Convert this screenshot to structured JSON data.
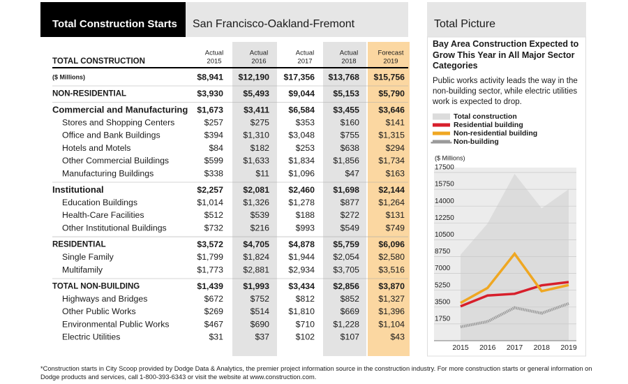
{
  "header": {
    "title": "Total Construction Starts",
    "region": "San Francisco-Oakland-Fremont"
  },
  "table": {
    "heading": "TOTAL CONSTRUCTION",
    "columns": [
      {
        "status": "Actual",
        "year": "2015"
      },
      {
        "status": "Actual",
        "year": "2016"
      },
      {
        "status": "Actual",
        "year": "2017"
      },
      {
        "status": "Actual",
        "year": "2018"
      },
      {
        "status": "Forecast",
        "year": "2019"
      }
    ],
    "rows": [
      {
        "label": "($ Millions)",
        "style": "units",
        "values": [
          "$8,941",
          "$12,190",
          "$17,356",
          "$13,768",
          "$15,756"
        ]
      },
      {
        "label": "NON-RESIDENTIAL",
        "style": "section",
        "values": [
          "$3,930",
          "$5,493",
          "$9,044",
          "$5,153",
          "$5,790"
        ]
      },
      {
        "label": "Commercial and Manufacturing",
        "style": "group",
        "values": [
          "$1,673",
          "$3,411",
          "$6,584",
          "$3,455",
          "$3,646"
        ]
      },
      {
        "label": "Stores and Shopping Centers",
        "style": "item",
        "values": [
          "$257",
          "$275",
          "$353",
          "$160",
          "$141"
        ]
      },
      {
        "label": "Office and Bank Buildings",
        "style": "item",
        "values": [
          "$394",
          "$1,310",
          "$3,048",
          "$755",
          "$1,315"
        ]
      },
      {
        "label": "Hotels and Motels",
        "style": "item",
        "values": [
          "$84",
          "$182",
          "$253",
          "$638",
          "$294"
        ]
      },
      {
        "label": "Other Commercial Buildings",
        "style": "item",
        "values": [
          "$599",
          "$1,633",
          "$1,834",
          "$1,856",
          "$1,734"
        ]
      },
      {
        "label": "Manufacturing Buildings",
        "style": "item",
        "values": [
          "$338",
          "$11",
          "$1,096",
          "$47",
          "$163"
        ]
      },
      {
        "label": "Institutional",
        "style": "group",
        "values": [
          "$2,257",
          "$2,081",
          "$2,460",
          "$1,698",
          "$2,144"
        ]
      },
      {
        "label": "Education Buildings",
        "style": "item",
        "values": [
          "$1,014",
          "$1,326",
          "$1,278",
          "$877",
          "$1,264"
        ]
      },
      {
        "label": "Health-Care Facilities",
        "style": "item",
        "values": [
          "$512",
          "$539",
          "$188",
          "$272",
          "$131"
        ]
      },
      {
        "label": "Other Institutional Buildings",
        "style": "item",
        "values": [
          "$732",
          "$216",
          "$993",
          "$549",
          "$749"
        ]
      },
      {
        "label": "RESIDENTIAL",
        "style": "section",
        "values": [
          "$3,572",
          "$4,705",
          "$4,878",
          "$5,759",
          "$6,096"
        ]
      },
      {
        "label": "Single Family",
        "style": "item",
        "values": [
          "$1,799",
          "$1,824",
          "$1,944",
          "$2,054",
          "$2,580"
        ]
      },
      {
        "label": "Multifamily",
        "style": "item",
        "values": [
          "$1,773",
          "$2,881",
          "$2,934",
          "$3,705",
          "$3,516"
        ]
      },
      {
        "label": "TOTAL NON-BUILDING",
        "style": "section",
        "values": [
          "$1,439",
          "$1,993",
          "$3,434",
          "$2,856",
          "$3,870"
        ]
      },
      {
        "label": "Highways and Bridges",
        "style": "item",
        "values": [
          "$672",
          "$752",
          "$812",
          "$852",
          "$1,327"
        ]
      },
      {
        "label": "Other Public Works",
        "style": "item",
        "values": [
          "$269",
          "$514",
          "$1,810",
          "$669",
          "$1,396"
        ]
      },
      {
        "label": "Environmental Public Works",
        "style": "item",
        "values": [
          "$467",
          "$690",
          "$710",
          "$1,228",
          "$1,104"
        ]
      },
      {
        "label": "Electric Utilities",
        "style": "item",
        "values": [
          "$31",
          "$37",
          "$102",
          "$107",
          "$43"
        ]
      }
    ]
  },
  "sidebar": {
    "title": "Total Picture",
    "subtitle": "Bay Area Construction Expected to Grow This Year in All Major Sector Categories",
    "text": "Public works activity leads the way in the non-building sector, while electric utilities work is expected to drop."
  },
  "chart_data": {
    "type": "line",
    "y_label": "($ Millions)",
    "categories": [
      "2015",
      "2016",
      "2017",
      "2018",
      "2019"
    ],
    "series": [
      {
        "name": "Total construction",
        "color": "#dcdcdc",
        "kind": "area",
        "values": [
          8941,
          12190,
          17356,
          13768,
          15756
        ]
      },
      {
        "name": "Residential building",
        "color": "#d71f2b",
        "kind": "line",
        "values": [
          3572,
          4705,
          4878,
          5759,
          6096
        ]
      },
      {
        "name": "Non-residential building",
        "color": "#efa722",
        "kind": "line",
        "values": [
          3930,
          5493,
          9044,
          5153,
          5790
        ]
      },
      {
        "name": "Non-building",
        "color": "#9a9a9a",
        "kind": "hatched",
        "values": [
          1439,
          1993,
          3434,
          2856,
          3870
        ]
      }
    ],
    "ylim": [
      0,
      17500
    ],
    "yticks": [
      1750,
      3500,
      5250,
      7000,
      8750,
      10500,
      12250,
      14000,
      15750,
      17500
    ],
    "grid": true
  },
  "footnote": "*Construction starts in City Scoop provided by Dodge Data & Analytics, the premier project information source in the construction industry. For more construction starts or general information on Dodge products and services, call 1-800-393-6343 or visit the website at www.construction.com."
}
